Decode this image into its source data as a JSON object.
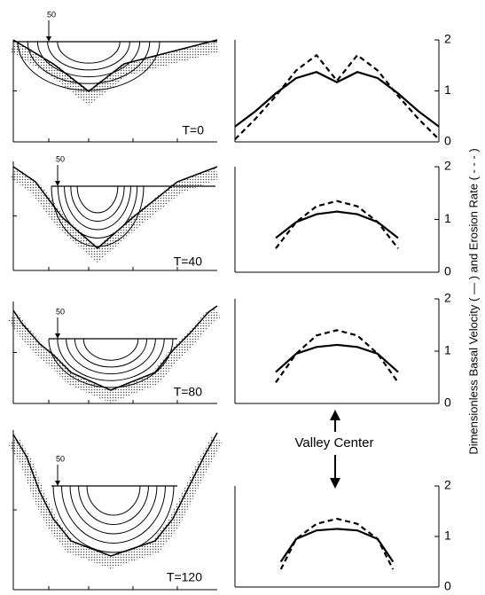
{
  "chart_data": [
    {
      "type": "line",
      "xlim": [
        -1,
        1
      ],
      "ylim": [
        0,
        2
      ],
      "yticks": [
        0,
        1,
        2
      ],
      "x": [
        -1,
        -0.8,
        -0.6,
        -0.4,
        -0.2,
        0,
        0.2,
        0.4,
        0.6,
        0.8,
        1
      ],
      "series": [
        {
          "color": "#000000",
          "dash": false,
          "values": [
            0.3,
            0.6,
            0.95,
            1.25,
            1.37,
            1.17,
            1.37,
            1.25,
            0.95,
            0.6,
            0.3
          ]
        },
        {
          "color": "#000000",
          "dash": true,
          "values": [
            0.05,
            0.45,
            0.9,
            1.4,
            1.7,
            1.2,
            1.7,
            1.4,
            0.9,
            0.45,
            0.05
          ]
        }
      ]
    },
    {
      "type": "line",
      "xlim": [
        -1,
        1
      ],
      "ylim": [
        0,
        2
      ],
      "yticks": [
        0,
        1,
        2
      ],
      "x": [
        -0.6,
        -0.4,
        -0.2,
        0,
        0.2,
        0.4,
        0.6
      ],
      "series": [
        {
          "color": "#000000",
          "dash": false,
          "values": [
            0.65,
            0.95,
            1.1,
            1.15,
            1.1,
            0.95,
            0.65
          ]
        },
        {
          "color": "#000000",
          "dash": true,
          "values": [
            0.45,
            0.95,
            1.25,
            1.35,
            1.25,
            0.95,
            0.45
          ]
        }
      ]
    },
    {
      "type": "line",
      "xlim": [
        -1,
        1
      ],
      "ylim": [
        0,
        2
      ],
      "yticks": [
        0,
        1,
        2
      ],
      "x": [
        -0.6,
        -0.4,
        -0.2,
        0,
        0.2,
        0.4,
        0.6
      ],
      "series": [
        {
          "color": "#000000",
          "dash": false,
          "values": [
            0.6,
            0.95,
            1.08,
            1.12,
            1.08,
            0.95,
            0.6
          ]
        },
        {
          "color": "#000000",
          "dash": true,
          "values": [
            0.4,
            0.95,
            1.3,
            1.4,
            1.3,
            0.95,
            0.4
          ]
        }
      ]
    },
    {
      "type": "line",
      "xlim": [
        -1,
        1
      ],
      "ylim": [
        0,
        2
      ],
      "yticks": [
        0,
        1,
        2
      ],
      "x": [
        -0.55,
        -0.4,
        -0.2,
        0,
        0.2,
        0.4,
        0.55
      ],
      "series": [
        {
          "color": "#000000",
          "dash": false,
          "values": [
            0.5,
            0.95,
            1.12,
            1.15,
            1.12,
            0.95,
            0.5
          ]
        },
        {
          "color": "#000000",
          "dash": true,
          "values": [
            0.35,
            0.95,
            1.25,
            1.35,
            1.25,
            0.95,
            0.35
          ]
        }
      ]
    }
  ],
  "y_axis_label": "Dimensionless Basal Velocity ( — ) and Erosion Rate ( - - - )",
  "annotation": "Valley Center",
  "cross_sections": [
    {
      "time_label": "T=0",
      "contour_label": "50"
    },
    {
      "time_label": "T=40",
      "contour_label": "50"
    },
    {
      "time_label": "T=80",
      "contour_label": "50"
    },
    {
      "time_label": "T=120",
      "contour_label": "50"
    }
  ]
}
